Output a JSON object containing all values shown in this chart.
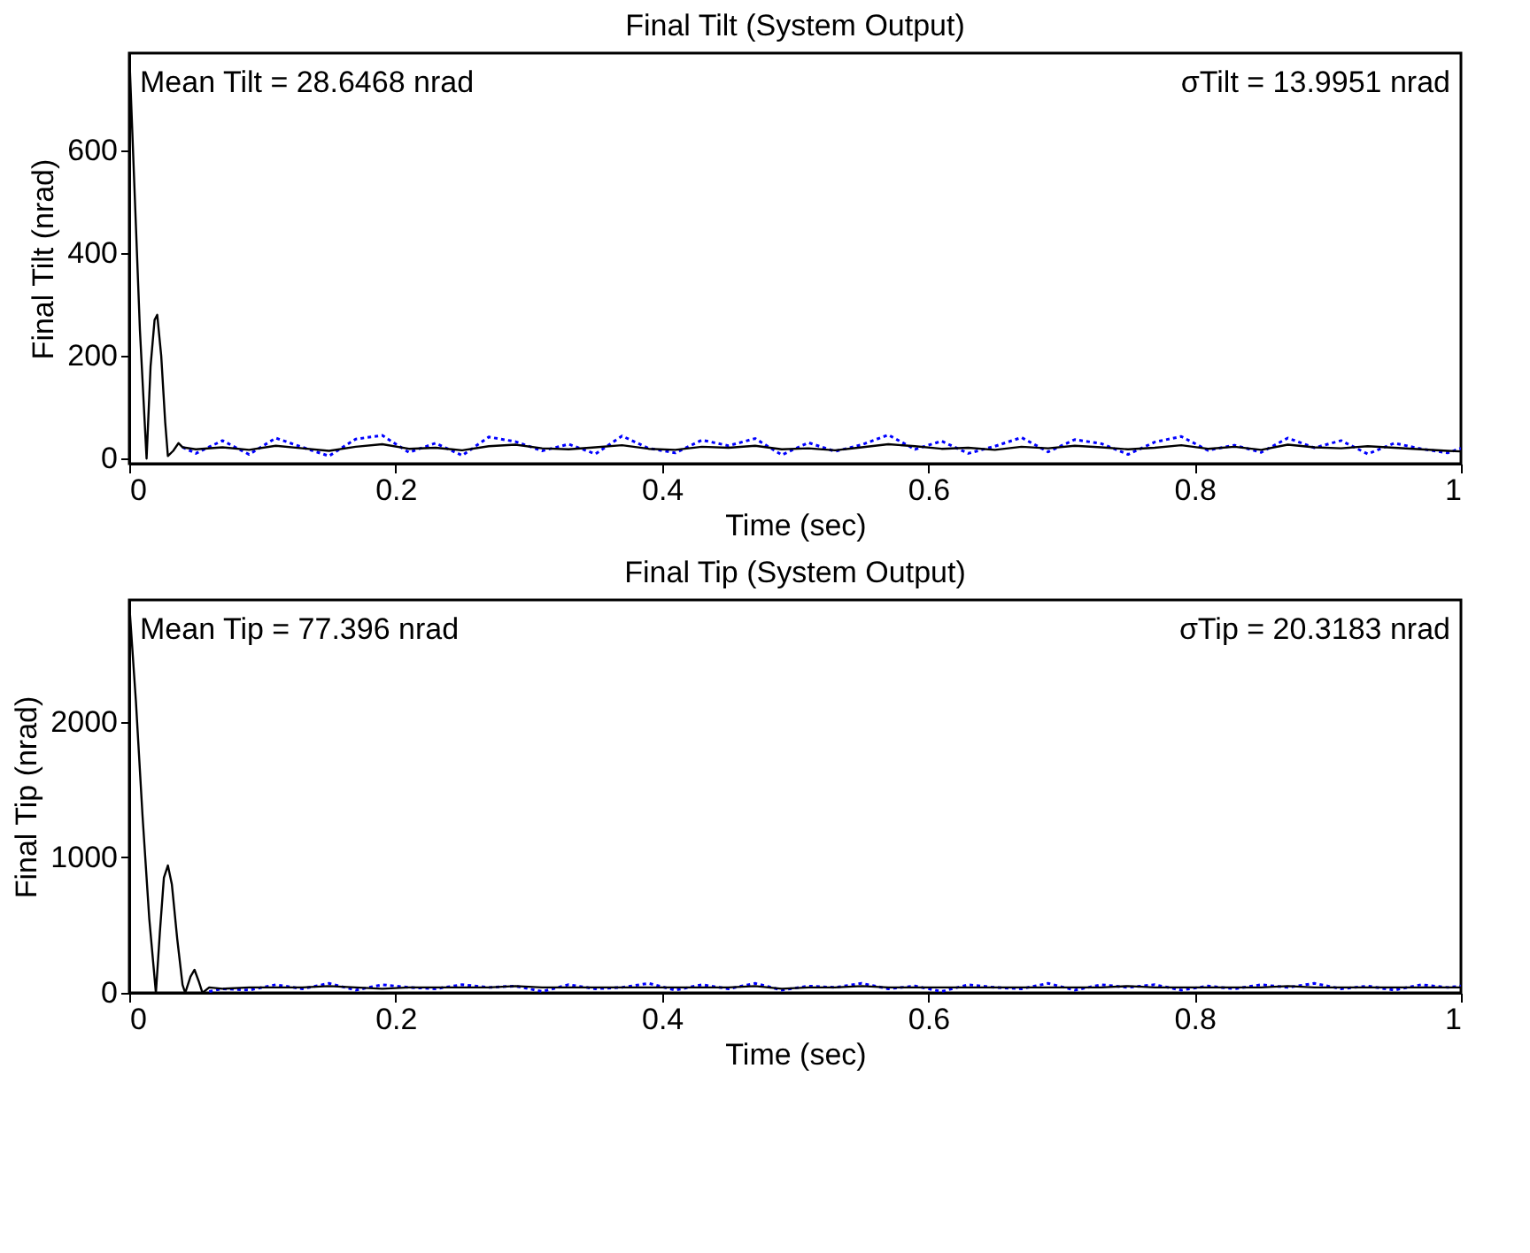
{
  "chart_data": [
    {
      "type": "line",
      "title": "Final Tilt (System Output)",
      "xlabel": "Time (sec)",
      "ylabel": "Final Tilt (nrad)",
      "x": [
        0,
        0.004,
        0.008,
        0.013,
        0.016,
        0.019,
        0.021,
        0.024,
        0.027,
        0.029,
        0.033,
        0.037,
        0.04,
        0.05,
        0.07,
        0.09,
        0.11,
        0.13,
        0.15,
        0.17,
        0.19,
        0.21,
        0.23,
        0.25,
        0.27,
        0.29,
        0.31,
        0.33,
        0.35,
        0.37,
        0.39,
        0.41,
        0.43,
        0.45,
        0.47,
        0.49,
        0.51,
        0.53,
        0.55,
        0.57,
        0.59,
        0.61,
        0.63,
        0.65,
        0.67,
        0.69,
        0.71,
        0.73,
        0.75,
        0.77,
        0.79,
        0.81,
        0.83,
        0.85,
        0.87,
        0.89,
        0.91,
        0.93,
        0.95,
        0.97,
        0.99,
        1.0
      ],
      "series": [
        {
          "color": "#0000ff",
          "line_style": "dotted",
          "values": [
            null,
            null,
            null,
            null,
            null,
            null,
            null,
            null,
            null,
            null,
            null,
            null,
            22,
            10,
            35,
            8,
            40,
            22,
            5,
            38,
            45,
            12,
            30,
            6,
            42,
            33,
            15,
            28,
            9,
            44,
            20,
            11,
            36,
            25,
            39,
            7,
            31,
            14,
            27,
            46,
            18,
            34,
            10,
            24,
            41,
            13,
            37,
            29,
            8,
            32,
            43,
            16,
            26,
            12,
            40,
            21,
            35,
            9,
            30,
            19,
            11,
            20
          ]
        },
        {
          "color": "#000000",
          "line_style": "solid",
          "values": [
            790,
            520,
            250,
            0,
            180,
            270,
            280,
            200,
            70,
            5,
            15,
            30,
            22,
            18,
            22,
            17,
            25,
            20,
            15,
            23,
            28,
            19,
            21,
            16,
            24,
            27,
            20,
            18,
            22,
            26,
            19,
            17,
            23,
            21,
            25,
            18,
            20,
            16,
            22,
            28,
            24,
            19,
            21,
            17,
            23,
            20,
            25,
            22,
            18,
            21,
            26,
            19,
            23,
            17,
            27,
            22,
            20,
            24,
            21,
            18,
            15,
            14
          ]
        }
      ],
      "xlim": [
        0,
        1
      ],
      "xticks": [
        0,
        0.2,
        0.4,
        0.6,
        0.8,
        1
      ],
      "ylim": [
        -10,
        790
      ],
      "yticks": [
        0,
        200,
        400,
        600
      ],
      "grid": false,
      "legend": false,
      "annotations": [
        "Mean Tilt = 28.6468 nrad",
        "σTilt = 13.9951 nrad"
      ]
    },
    {
      "type": "line",
      "title": "Final Tip (System Output)",
      "xlabel": "Time (sec)",
      "ylabel": "Final Tip (nrad)",
      "x": [
        0,
        0.005,
        0.01,
        0.015,
        0.02,
        0.023,
        0.026,
        0.029,
        0.032,
        0.036,
        0.04,
        0.042,
        0.046,
        0.049,
        0.052,
        0.055,
        0.06,
        0.07,
        0.09,
        0.11,
        0.13,
        0.15,
        0.17,
        0.19,
        0.21,
        0.23,
        0.25,
        0.27,
        0.29,
        0.31,
        0.33,
        0.35,
        0.37,
        0.39,
        0.41,
        0.43,
        0.45,
        0.47,
        0.49,
        0.51,
        0.53,
        0.55,
        0.57,
        0.59,
        0.61,
        0.63,
        0.65,
        0.67,
        0.69,
        0.71,
        0.73,
        0.75,
        0.77,
        0.79,
        0.81,
        0.83,
        0.85,
        0.87,
        0.89,
        0.91,
        0.93,
        0.95,
        0.97,
        0.99,
        1.0
      ],
      "series": [
        {
          "color": "#0000ff",
          "line_style": "dotted",
          "values": [
            null,
            null,
            null,
            null,
            null,
            null,
            null,
            null,
            null,
            null,
            null,
            null,
            null,
            null,
            null,
            null,
            10,
            30,
            20,
            60,
            30,
            70,
            20,
            60,
            40,
            30,
            60,
            40,
            50,
            10,
            60,
            30,
            40,
            70,
            20,
            60,
            30,
            70,
            20,
            50,
            40,
            70,
            30,
            50,
            10,
            60,
            40,
            30,
            70,
            20,
            60,
            40,
            60,
            20,
            50,
            30,
            60,
            40,
            70,
            30,
            50,
            20,
            60,
            40,
            50
          ]
        },
        {
          "color": "#000000",
          "line_style": "solid",
          "values": [
            2870,
            2150,
            1300,
            550,
            0,
            450,
            850,
            940,
            800,
            400,
            60,
            0,
            120,
            170,
            90,
            0,
            40,
            30,
            40,
            40,
            40,
            50,
            40,
            30,
            40,
            40,
            40,
            40,
            50,
            40,
            40,
            40,
            40,
            40,
            40,
            40,
            40,
            50,
            30,
            40,
            40,
            50,
            40,
            40,
            40,
            40,
            40,
            40,
            40,
            40,
            40,
            50,
            40,
            40,
            40,
            40,
            40,
            50,
            40,
            40,
            40,
            40,
            40,
            40,
            40
          ]
        }
      ],
      "xlim": [
        0,
        1
      ],
      "xticks": [
        0,
        0.2,
        0.4,
        0.6,
        0.8,
        1
      ],
      "ylim": [
        0,
        2900
      ],
      "yticks": [
        0,
        1000,
        2000
      ],
      "grid": false,
      "legend": false,
      "annotations": [
        "Mean Tip = 77.396 nrad",
        "σTip = 20.3183 nrad"
      ]
    }
  ]
}
